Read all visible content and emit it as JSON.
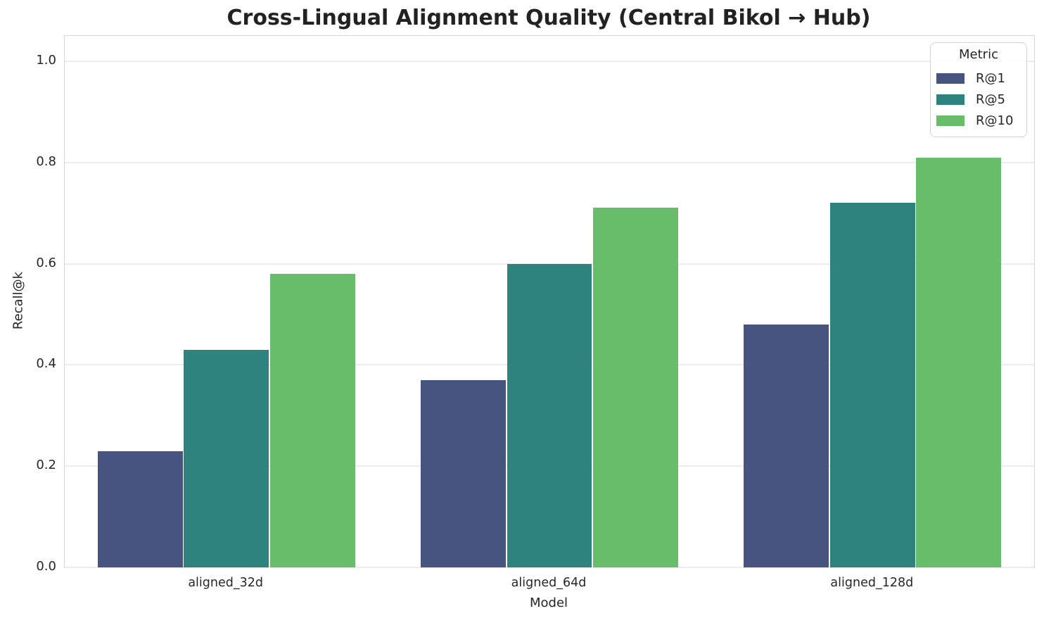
{
  "chart_data": {
    "type": "bar",
    "title": "Cross-Lingual Alignment Quality (Central Bikol → Hub)",
    "xlabel": "Model",
    "ylabel": "Recall@k",
    "categories": [
      "aligned_32d",
      "aligned_64d",
      "aligned_128d"
    ],
    "series": [
      {
        "name": "R@1",
        "color": "#46557f",
        "values": [
          0.23,
          0.37,
          0.48
        ]
      },
      {
        "name": "R@5",
        "color": "#2e837e",
        "values": [
          0.43,
          0.6,
          0.72
        ]
      },
      {
        "name": "R@10",
        "color": "#68bd6b",
        "values": [
          0.58,
          0.71,
          0.81
        ]
      }
    ],
    "ylim": [
      0,
      1.05
    ],
    "yticks": [
      0.0,
      0.2,
      0.4,
      0.6,
      0.8,
      1.0
    ],
    "grid": true,
    "legend": {
      "title": "Metric",
      "position": "upper right"
    },
    "styles": {
      "grid_color": "#ececec",
      "spine_color": "#d5d5d5",
      "text_color": "#262626",
      "background": "#ffffff"
    }
  }
}
